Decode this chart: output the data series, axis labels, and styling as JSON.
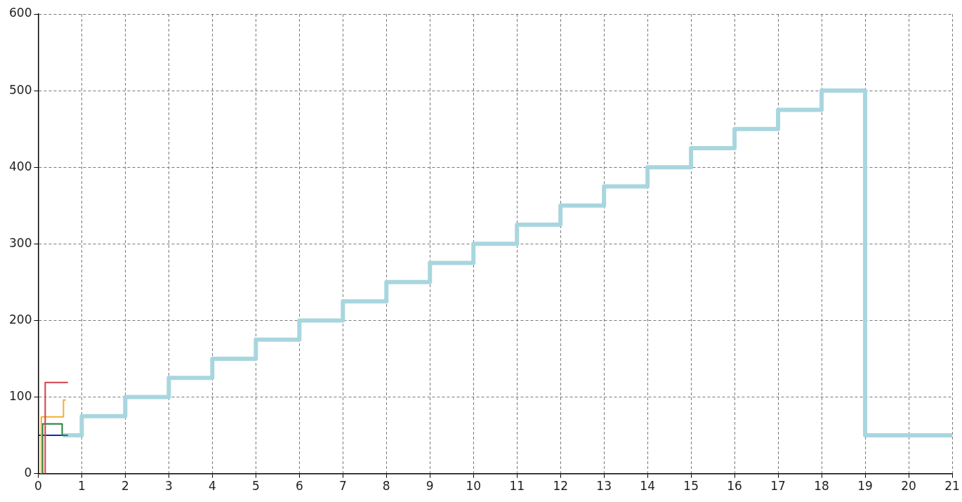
{
  "chart_data": {
    "type": "line",
    "xlim": [
      0,
      21
    ],
    "ylim": [
      0,
      600
    ],
    "xticks": [
      0,
      1,
      2,
      3,
      4,
      5,
      6,
      7,
      8,
      9,
      10,
      11,
      12,
      13,
      14,
      15,
      16,
      17,
      18,
      19,
      20,
      21
    ],
    "yticks": [
      0,
      100,
      200,
      300,
      400,
      500,
      600
    ],
    "grid": true,
    "legend": false,
    "marker": "none",
    "line_style": "solid",
    "series": [
      {
        "color": "#a8d6df",
        "x": [
          0.6,
          1,
          1,
          2,
          2,
          3,
          3,
          4,
          4,
          5,
          5,
          6,
          6,
          7,
          7,
          8,
          8,
          9,
          9,
          10,
          10,
          11,
          11,
          12,
          12,
          13,
          13,
          14,
          14,
          15,
          15,
          16,
          16,
          17,
          17,
          18,
          18,
          19,
          19,
          21
        ],
        "values": [
          50,
          50,
          75,
          75,
          100,
          100,
          125,
          125,
          150,
          150,
          175,
          175,
          200,
          200,
          225,
          225,
          250,
          250,
          275,
          275,
          300,
          300,
          325,
          325,
          350,
          350,
          375,
          375,
          400,
          400,
          425,
          425,
          450,
          450,
          475,
          475,
          500,
          500,
          50,
          50
        ]
      },
      {
        "color": "#1a2a9a",
        "x": [
          0,
          0.61
        ],
        "values": [
          50,
          50
        ]
      },
      {
        "color": "#208040",
        "x": [
          0.1,
          0.1,
          0.55,
          0.55,
          0.67
        ],
        "values": [
          0,
          65,
          65,
          50,
          50
        ]
      },
      {
        "color": "#f0b030",
        "x": [
          0.07,
          0.07,
          0.58,
          0.58,
          0.62
        ],
        "values": [
          0,
          74,
          74,
          96,
          96
        ]
      },
      {
        "color": "#d0404a",
        "x": [
          0.16,
          0.16,
          0.67
        ],
        "values": [
          0,
          119,
          119
        ]
      }
    ]
  }
}
